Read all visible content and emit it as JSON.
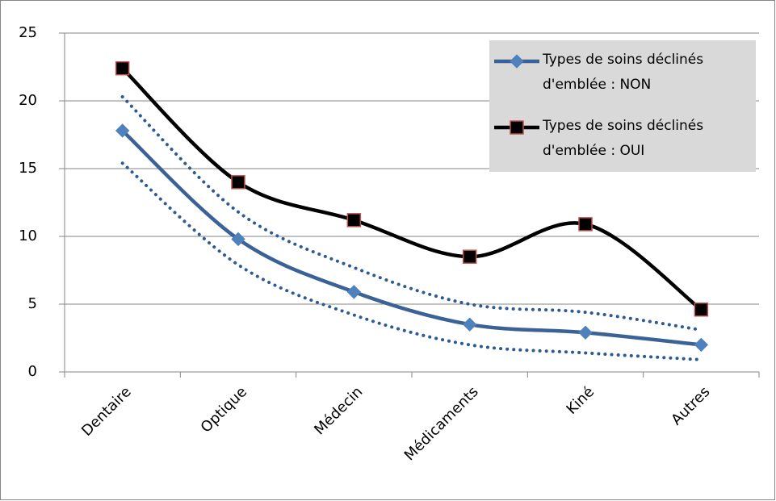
{
  "chart_data": {
    "type": "line",
    "categories": [
      "Dentaire",
      "Optique",
      "Médecin",
      "Médicaments",
      "Kiné",
      "Autres"
    ],
    "series": [
      {
        "name": "Types de soins déclinés d'emblée : NON",
        "color": "#3a6296",
        "marker": "diamond",
        "marker_color": "#4f81bd",
        "marker_edge": "#4f81bd",
        "values": [
          17.8,
          9.8,
          5.9,
          3.5,
          2.9,
          2.0
        ]
      },
      {
        "name": "Types de soins déclinés d'emblée : OUI",
        "color": "#000000",
        "marker": "square",
        "marker_color": "#000000",
        "marker_edge": "#c0504d",
        "values": [
          22.4,
          14.0,
          11.2,
          8.5,
          10.9,
          4.6
        ]
      },
      {
        "color": "#2c5b91",
        "dash": "dotted",
        "values": [
          20.3,
          11.8,
          7.7,
          5.0,
          4.4,
          3.1
        ]
      },
      {
        "color": "#2c5b91",
        "dash": "dotted",
        "values": [
          15.4,
          7.9,
          4.2,
          2.0,
          1.4,
          0.9
        ]
      }
    ],
    "ylim": [
      0,
      25
    ],
    "yticks": [
      0,
      5,
      10,
      15,
      20,
      25
    ],
    "grid": true,
    "legend": "top-right",
    "legend_color": "#d9d9d9"
  }
}
